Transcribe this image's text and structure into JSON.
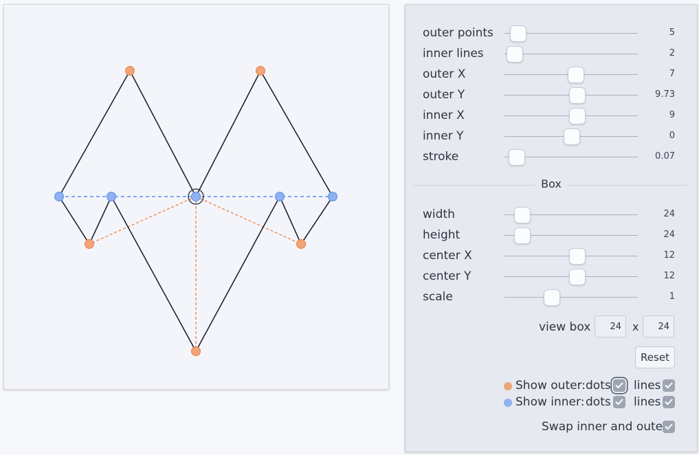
{
  "colors": {
    "outer": "#ee8040",
    "outer_fill": "#efa57a",
    "inner": "#5b8ff0",
    "inner_fill": "#8fb1ee",
    "stroke": "#1f2430"
  },
  "sliders": [
    {
      "key": "outer_points",
      "label": "outer points",
      "value": "5",
      "fraction": 0.1
    },
    {
      "key": "inner_lines",
      "label": "inner lines",
      "value": "2",
      "fraction": 0.07
    },
    {
      "key": "outer_x",
      "label": "outer X",
      "value": "7",
      "fraction": 0.53
    },
    {
      "key": "outer_y",
      "label": "outer Y",
      "value": "9.73",
      "fraction": 0.54
    },
    {
      "key": "inner_x",
      "label": "inner X",
      "value": "9",
      "fraction": 0.54
    },
    {
      "key": "inner_y",
      "label": "inner Y",
      "value": "0",
      "fraction": 0.5
    },
    {
      "key": "stroke",
      "label": "stroke",
      "value": "0.07",
      "fraction": 0.09
    }
  ],
  "box_section_label": "Box",
  "box_sliders": [
    {
      "key": "width",
      "label": "width",
      "value": "24",
      "fraction": 0.13
    },
    {
      "key": "height",
      "label": "height",
      "value": "24",
      "fraction": 0.13
    },
    {
      "key": "center_x",
      "label": "center X",
      "value": "12",
      "fraction": 0.54
    },
    {
      "key": "center_y",
      "label": "center Y",
      "value": "12",
      "fraction": 0.54
    },
    {
      "key": "scale",
      "label": "scale",
      "value": "1",
      "fraction": 0.35
    }
  ],
  "view_box": {
    "label": "view box",
    "width": "24",
    "x_label": "x",
    "height": "24"
  },
  "reset_label": "Reset",
  "toggles": {
    "outer_label": "Show outer:",
    "inner_label": "Show inner:",
    "dots_label": "dots",
    "lines_label": "lines",
    "swap_label": "Swap inner and outer",
    "outer_dots": true,
    "outer_lines": true,
    "inner_dots": true,
    "inner_lines": true,
    "swap": true
  }
}
